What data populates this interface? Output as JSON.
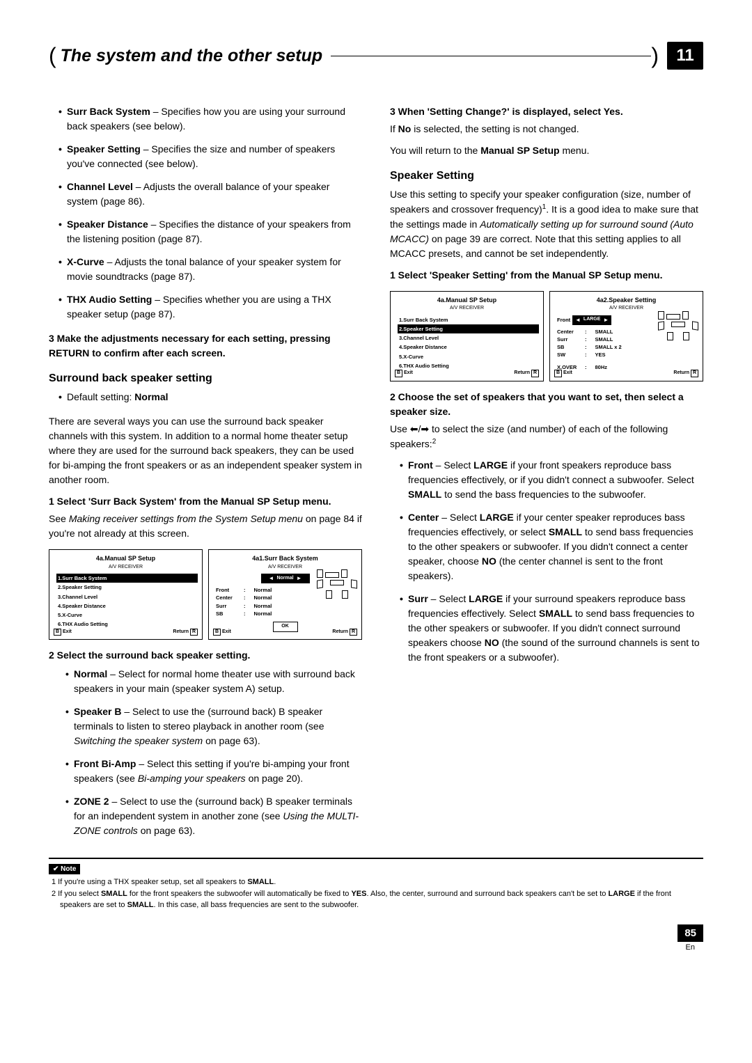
{
  "header": {
    "title": "The system and the other setup",
    "chapter": "11"
  },
  "left": {
    "bullets": [
      {
        "t": "Surr Back System",
        "d": " – Specifies how you are using your surround back speakers (see below)."
      },
      {
        "t": "Speaker Setting",
        "d": " – Specifies the size and number of speakers you've connected (see below)."
      },
      {
        "t": "Channel Level",
        "d": " – Adjusts the overall balance of your speaker system (page 86)."
      },
      {
        "t": "Speaker Distance",
        "d": " – Specifies the distance of your speakers from the listening position (page 87)."
      },
      {
        "t": "X-Curve",
        "d": " – Adjusts the tonal balance of your speaker system for movie soundtracks (page 87)."
      },
      {
        "t": "THX Audio Setting",
        "d": " – Specifies whether you are using a THX speaker setup (page 87)."
      }
    ],
    "step3": "3   Make the adjustments necessary for each setting, pressing RETURN to confirm after each screen.",
    "surrH": "Surround back speaker setting",
    "surrDef": "Default setting: ",
    "surrDefVal": "Normal",
    "surrP": "There are several ways you can use the surround back speaker channels with this system. In addition to a normal home theater setup where they are used for the surround back speakers, they can be used for bi-amping the front speakers or as an independent speaker system in another room.",
    "surrStep1": "1   Select 'Surr Back System' from the Manual SP Setup menu.",
    "surrSee": "See ",
    "surrSeeI": "Making receiver settings from the System Setup menu",
    "surrSee2": " on page 84 if you're not already at this screen.",
    "surrStep2": "2   Select the surround back speaker setting.",
    "opts": [
      {
        "t": "Normal",
        "d": " – Select for normal home theater use with surround back speakers in your main (speaker system A) setup."
      },
      {
        "t": "Speaker B",
        "d": " – Select to use the (surround back) B speaker terminals to listen to stereo playback in another room (see ",
        "i": "Switching the speaker system",
        "d2": " on page 63)."
      },
      {
        "t": "Front Bi-Amp",
        "d": " – Select this setting if you're bi-amping your front speakers (see ",
        "i": "Bi-amping your speakers",
        "d2": " on page 20)."
      },
      {
        "t": "ZONE 2",
        "d": " – Select to use the (surround back) B speaker terminals for an independent system in another zone (see ",
        "i": "Using the MULTI-ZONE controls",
        "d2": " on page 63)."
      }
    ]
  },
  "right": {
    "step3": "3   When 'Setting Change?' is displayed, select Yes.",
    "step3p1": "If ",
    "step3b": "No",
    "step3p2": " is selected, the setting is not changed.",
    "step3p3": "You will return to the ",
    "step3b2": "Manual SP Setup",
    "step3p4": " menu.",
    "spkH": "Speaker Setting",
    "spkP1a": "Use this setting to specify your speaker configuration (size, number of speakers and crossover frequency)",
    "spkFn1": "1",
    "spkP1b": ". It is a good idea to make sure that the settings made in ",
    "spkI": "Automatically setting up for surround sound (Auto MCACC)",
    "spkP1c": " on page 39 are correct. Note that this setting applies to all MCACC presets, and cannot be set independently.",
    "spkStep1": "1   Select 'Speaker Setting' from the Manual SP Setup menu.",
    "spkStep2": "2   Choose the set of speakers that you want to set, then select a speaker size.",
    "spkUse": "Use ⬅/➡ to select the size (and number) of each of the following speakers:",
    "spkFn2": "2",
    "spkBul": [
      {
        "t": "Front",
        "a": " – Select ",
        "b1": "LARGE",
        "c": " if your front speakers reproduce bass frequencies effectively, or if you didn't connect a subwoofer. Select ",
        "b2": "SMALL",
        "d": " to send the bass frequencies to the subwoofer."
      },
      {
        "t": "Center",
        "a": " – Select ",
        "b1": "LARGE",
        "c": " if your center speaker reproduces bass frequencies effectively, or select ",
        "b2": "SMALL",
        "d": " to send bass frequencies to the other speakers or subwoofer. If you didn't connect a center speaker, choose ",
        "b3": "NO",
        "e": " (the center channel is sent to the front speakers)."
      },
      {
        "t": "Surr",
        "a": " – Select ",
        "b1": "LARGE",
        "c": " if your surround speakers reproduce bass frequencies effectively. Select ",
        "b2": "SMALL",
        "d": " to send bass frequencies to the other speakers or subwoofer. If you didn't connect surround speakers choose ",
        "b3": "NO",
        "e": " (the sound of the surround channels is sent to the front speakers or a subwoofer)."
      }
    ]
  },
  "osd": {
    "m1": {
      "title": "4a.Manual SP Setup",
      "sub": "A/V RECEIVER",
      "items": [
        "1.Surr Back System",
        "2.Speaker Setting",
        "3.Channel Level",
        "4.Speaker Distance",
        "5.X-Curve",
        "6.THX Audio Setting"
      ],
      "sel": 0,
      "exit": "Exit",
      "ret": "Return"
    },
    "m2": {
      "title": "4a1.Surr Back System",
      "sub": "A/V RECEIVER",
      "opt": "Normal",
      "rows": [
        [
          "Front",
          ":",
          "Normal"
        ],
        [
          "Center",
          ":",
          "Normal"
        ],
        [
          "Surr",
          ":",
          "Normal"
        ],
        [
          "SB",
          ":",
          "Normal"
        ]
      ],
      "ok": "OK"
    },
    "m3": {
      "title": "4a.Manual SP Setup",
      "sub": "A/V RECEIVER",
      "items": [
        "1.Surr Back System",
        "2.Speaker Setting",
        "3.Channel Level",
        "4.Speaker Distance",
        "5.X-Curve",
        "6.THX Audio Setting"
      ],
      "sel": 1
    },
    "m4": {
      "title": "4a2.Speaker Setting",
      "sub": "A/V RECEIVER",
      "optL": "Front",
      "opt": "LARGE",
      "rows": [
        [
          "Center",
          ":",
          "SMALL"
        ],
        [
          "Surr",
          ":",
          "SMALL"
        ],
        [
          "SB",
          ":",
          "SMALL x 2"
        ],
        [
          "SW",
          ":",
          "YES"
        ]
      ],
      "xover": [
        "X.OVER",
        ":",
        "80Hz"
      ]
    }
  },
  "notes": {
    "lbl": "Note",
    "fn1": "1 If you're using a THX speaker setup, set all speakers to ",
    "fn1b": "SMALL",
    "fn1e": ".",
    "fn2": "2 If you select ",
    "fn2b1": "SMALL",
    "fn2m": " for the front speakers the subwoofer will automatically be fixed to ",
    "fn2b2": "YES",
    "fn2m2": ". Also, the center, surround and surround back speakers can't be set to ",
    "fn2b3": "LARGE",
    "fn2m3": " if the front speakers are set to ",
    "fn2b4": "SMALL",
    "fn2e": ". In this case, all bass frequencies are sent to the subwoofer."
  },
  "page": {
    "num": "85",
    "lang": "En"
  }
}
